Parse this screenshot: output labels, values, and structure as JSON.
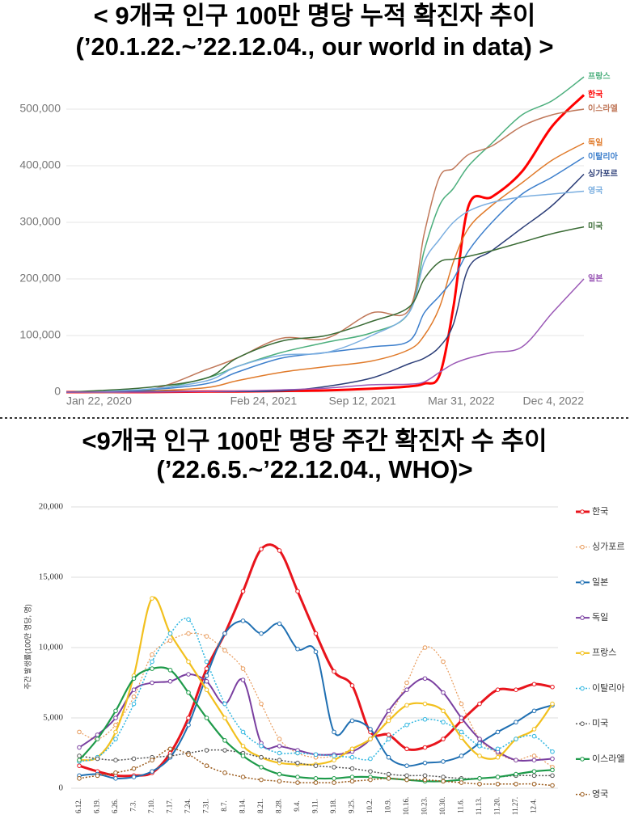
{
  "chart_data": [
    {
      "type": "line",
      "title": "< 9개국 인구 100만 명당 누적 확진자 추이",
      "subtitle": "(’20.1.22.~’22.12.04., our world in data) >",
      "legend": "inline",
      "grid": true,
      "x": [
        "2020-01-22",
        "2020-07-01",
        "2020-11-01",
        "2021-01-01",
        "2021-04-01",
        "2021-07-01",
        "2021-10-01",
        "2021-12-15",
        "2022-01-15",
        "2022-02-15",
        "2022-03-15",
        "2022-04-15",
        "2022-06-01",
        "2022-08-01",
        "2022-10-01",
        "2022-12-04"
      ],
      "xlim": [
        "2020-01-22",
        "2022-12-04"
      ],
      "xticks": [
        {
          "value": "2020-01-22",
          "label": "Jan 22, 2020"
        },
        {
          "value": "2021-02-24",
          "label": "Feb 24, 2021"
        },
        {
          "value": "2021-09-12",
          "label": "Sep 12, 2021"
        },
        {
          "value": "2022-03-31",
          "label": "Mar 31, 2022"
        },
        {
          "value": "2022-12-04",
          "label": "Dec 4, 2022"
        }
      ],
      "ylim": [
        0,
        570000
      ],
      "yticks": [
        0,
        {
          "value": 100000,
          "label": "100,000"
        },
        {
          "value": 200000,
          "label": "200,000"
        },
        {
          "value": 300000,
          "label": "300,000"
        },
        {
          "value": 400000,
          "label": "400,000"
        },
        {
          "value": 500000,
          "label": "500,000"
        }
      ],
      "series": [
        {
          "name": "프랑스",
          "color": "#4caf7d",
          "width": 1.5,
          "values": [
            0,
            3000,
            25000,
            45000,
            70000,
            88000,
            105000,
            140000,
            250000,
            330000,
            360000,
            400000,
            440000,
            490000,
            515000,
            557000
          ]
        },
        {
          "name": "한국",
          "color": "#ff0000",
          "width": 3,
          "values": [
            0,
            0,
            1000,
            1000,
            2000,
            3000,
            6000,
            10000,
            15000,
            30000,
            150000,
            330000,
            345000,
            390000,
            470000,
            525000
          ]
        },
        {
          "name": "이스라엘",
          "color": "#c0785a",
          "width": 1.5,
          "values": [
            0,
            3000,
            40000,
            60000,
            95000,
            95000,
            140000,
            145000,
            280000,
            380000,
            395000,
            420000,
            435000,
            470000,
            490000,
            500000
          ]
        },
        {
          "name": "독일",
          "color": "#e07a2a",
          "width": 1.5,
          "values": [
            0,
            2000,
            8000,
            20000,
            35000,
            45000,
            55000,
            75000,
            100000,
            150000,
            230000,
            290000,
            330000,
            370000,
            410000,
            440000
          ]
        },
        {
          "name": "이탈리아",
          "color": "#3d7fcc",
          "width": 1.5,
          "values": [
            0,
            4000,
            15000,
            35000,
            60000,
            70000,
            80000,
            90000,
            140000,
            170000,
            200000,
            250000,
            300000,
            350000,
            380000,
            415000
          ]
        },
        {
          "name": "싱가포르",
          "color": "#2c3e78",
          "width": 1.5,
          "values": [
            0,
            1000,
            1000,
            1000,
            2000,
            10000,
            25000,
            50000,
            60000,
            80000,
            120000,
            220000,
            250000,
            290000,
            330000,
            385000
          ]
        },
        {
          "name": "영국",
          "color": "#7aaee0",
          "width": 1.5,
          "values": [
            0,
            5000,
            20000,
            45000,
            65000,
            70000,
            100000,
            140000,
            230000,
            270000,
            300000,
            320000,
            335000,
            345000,
            350000,
            355000
          ]
        },
        {
          "name": "미국",
          "color": "#3a6b35",
          "width": 1.5,
          "values": [
            0,
            8000,
            25000,
            60000,
            90000,
            100000,
            125000,
            150000,
            200000,
            230000,
            235000,
            240000,
            250000,
            265000,
            280000,
            292000
          ]
        },
        {
          "name": "일본",
          "color": "#9b59b6",
          "width": 1.5,
          "values": [
            0,
            0,
            1000,
            2000,
            4000,
            7000,
            13000,
            14000,
            18000,
            35000,
            50000,
            60000,
            70000,
            80000,
            140000,
            200000
          ]
        }
      ]
    },
    {
      "type": "line",
      "title": "<9개국 인구 100만 명당 주간 확진자 수 추이",
      "subtitle": "(’22.6.5.~’22.12.04., WHO)>",
      "y_label": "주간 발생률(100만 명당, 명)",
      "legend": "right",
      "grid": true,
      "categories": [
        "6.12.",
        "6.19.",
        "6.26.",
        "7.3.",
        "7.10.",
        "7.17.",
        "7.24.",
        "7.31.",
        "8.7.",
        "8.14.",
        "8.21.",
        "8.28.",
        "9.4.",
        "9.11.",
        "9.18.",
        "9.25.",
        "10.2.",
        "10.9.",
        "10.16.",
        "10.23.",
        "10.30.",
        "11.6.",
        "11.13.",
        "11.20.",
        "11.27.",
        "12.4.",
        null
      ],
      "ylim": [
        0,
        20000
      ],
      "yticks": [
        0,
        {
          "value": 5000,
          "label": "5,000"
        },
        {
          "value": 10000,
          "label": "10,000"
        },
        {
          "value": 15000,
          "label": "15,000"
        },
        {
          "value": 20000,
          "label": "20,000"
        }
      ],
      "series": [
        {
          "name": "한국",
          "color": "#e8141c",
          "width": 3,
          "dash": "solid",
          "values": [
            1600,
            1200,
            900,
            900,
            1100,
            2500,
            5000,
            8500,
            11000,
            14000,
            17000,
            16900,
            14000,
            11000,
            8300,
            7300,
            4000,
            3800,
            2800,
            2900,
            3500,
            4800,
            6000,
            7000,
            7000,
            7400,
            7200
          ]
        },
        {
          "name": "싱가포르",
          "color": "#e89a5a",
          "width": 1.2,
          "dash": "dotted",
          "values": [
            4000,
            3500,
            4500,
            6500,
            9500,
            10500,
            11000,
            10800,
            9800,
            8500,
            6000,
            3500,
            2500,
            2200,
            2300,
            2800,
            3500,
            5000,
            7500,
            10000,
            9000,
            6000,
            3500,
            2500,
            2000,
            2300,
            1500
          ]
        },
        {
          "name": "일본",
          "color": "#1f6fb2",
          "width": 2,
          "dash": "solid",
          "values": [
            900,
            1000,
            700,
            800,
            1200,
            2200,
            4500,
            8000,
            11000,
            11900,
            11000,
            11700,
            9900,
            9700,
            4000,
            4800,
            4200,
            2200,
            1600,
            1800,
            1900,
            2300,
            3200,
            4000,
            4700,
            5500,
            5900
          ]
        },
        {
          "name": "독일",
          "color": "#7a3fa0",
          "width": 2,
          "dash": "solid",
          "values": [
            2900,
            3800,
            5000,
            7000,
            7500,
            7600,
            8100,
            7600,
            6000,
            7700,
            3200,
            3000,
            2700,
            2400,
            2400,
            2600,
            3500,
            5500,
            7000,
            7800,
            6800,
            5000,
            3500,
            2600,
            2000,
            2000,
            2100
          ]
        },
        {
          "name": "프랑스",
          "color": "#f2c01e",
          "width": 2.2,
          "dash": "solid",
          "values": [
            2000,
            2200,
            4000,
            8000,
            13500,
            11000,
            9000,
            7000,
            5000,
            3000,
            2200,
            1800,
            1700,
            1700,
            2000,
            2800,
            3500,
            4800,
            5900,
            6000,
            5500,
            3600,
            2300,
            2200,
            3500,
            4200,
            6000
          ]
        },
        {
          "name": "이탈리아",
          "color": "#2fb6e0",
          "width": 1.5,
          "dash": "dotted",
          "values": [
            1900,
            2200,
            3500,
            6000,
            9000,
            11000,
            12000,
            9000,
            6000,
            4000,
            3000,
            2500,
            2500,
            2400,
            2300,
            2200,
            2100,
            3500,
            4500,
            4900,
            4700,
            4000,
            3000,
            2800,
            3500,
            3700,
            2600
          ]
        },
        {
          "name": "미국",
          "color": "#555555",
          "width": 1.5,
          "dash": "dotted",
          "values": [
            2300,
            2100,
            2000,
            2100,
            2200,
            2300,
            2500,
            2700,
            2700,
            2500,
            2200,
            2000,
            1800,
            1600,
            1500,
            1400,
            1200,
            1000,
            900,
            900,
            800,
            700,
            700,
            800,
            900,
            900,
            900
          ]
        },
        {
          "name": "이스라엘",
          "color": "#1e9a4a",
          "width": 2.2,
          "dash": "solid",
          "values": [
            2000,
            3500,
            5500,
            7800,
            8500,
            8400,
            6800,
            5000,
            3400,
            2300,
            1500,
            1000,
            800,
            700,
            700,
            800,
            800,
            700,
            600,
            500,
            500,
            600,
            700,
            800,
            1000,
            1200,
            1300
          ]
        },
        {
          "name": "영국",
          "color": "#9a5a1a",
          "width": 1.5,
          "dash": "dotted",
          "values": [
            700,
            900,
            1100,
            1400,
            2000,
            2800,
            2400,
            1600,
            1100,
            800,
            600,
            500,
            400,
            400,
            400,
            500,
            600,
            700,
            600,
            600,
            500,
            400,
            300,
            300,
            300,
            300,
            200
          ]
        }
      ]
    }
  ]
}
